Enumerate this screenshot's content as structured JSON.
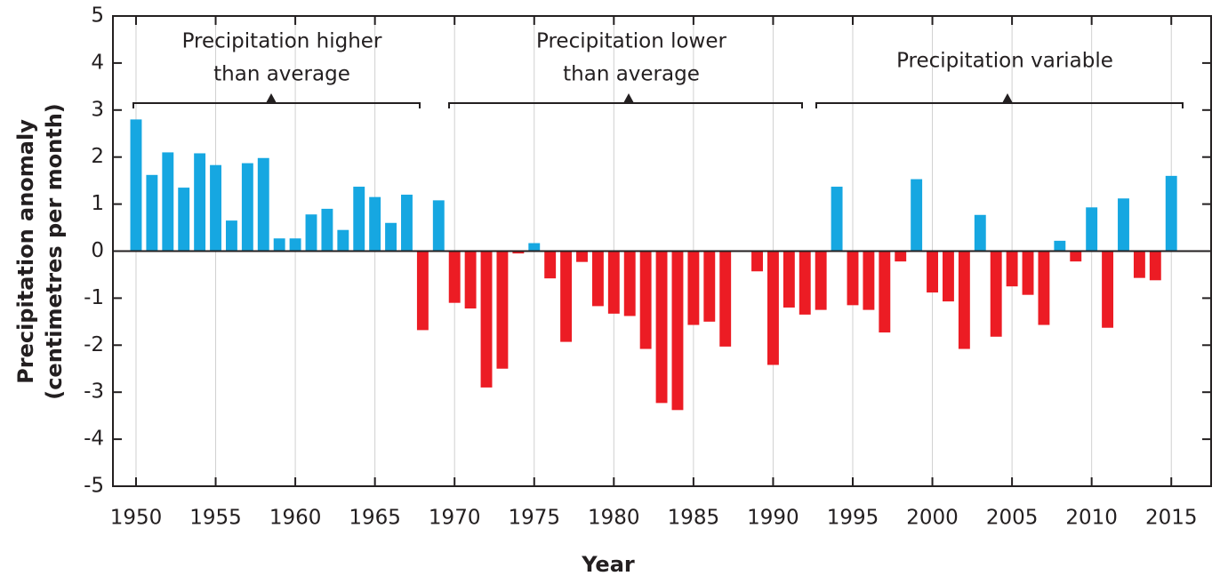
{
  "chart_data": {
    "type": "bar",
    "x": [
      1950,
      1951,
      1952,
      1953,
      1954,
      1955,
      1956,
      1957,
      1958,
      1959,
      1960,
      1961,
      1962,
      1963,
      1964,
      1965,
      1966,
      1967,
      1968,
      1969,
      1970,
      1971,
      1972,
      1973,
      1974,
      1975,
      1976,
      1977,
      1978,
      1979,
      1980,
      1981,
      1982,
      1983,
      1984,
      1985,
      1986,
      1987,
      1988,
      1989,
      1990,
      1991,
      1992,
      1993,
      1994,
      1995,
      1996,
      1997,
      1998,
      1999,
      2000,
      2001,
      2002,
      2003,
      2004,
      2005,
      2006,
      2007,
      2008,
      2009,
      2010,
      2011,
      2012,
      2013,
      2014,
      2015
    ],
    "values": [
      2.8,
      1.62,
      2.1,
      1.35,
      2.08,
      1.83,
      0.65,
      1.87,
      1.98,
      0.27,
      0.27,
      0.78,
      0.9,
      0.45,
      1.37,
      1.15,
      0.6,
      1.2,
      -1.68,
      1.08,
      -1.1,
      -1.22,
      -2.9,
      -2.5,
      -0.05,
      0.17,
      -0.58,
      -1.93,
      -0.23,
      -1.17,
      -1.33,
      -1.38,
      -2.08,
      -3.23,
      -3.38,
      -1.57,
      -1.5,
      -2.03,
      null,
      -0.43,
      -2.42,
      -1.2,
      -1.35,
      -1.25,
      1.37,
      -1.15,
      -1.25,
      -1.73,
      -0.22,
      1.53,
      -0.88,
      -1.07,
      -2.08,
      0.77,
      -1.82,
      -0.75,
      -0.93,
      -1.57,
      0.22,
      -0.22,
      0.93,
      -1.63,
      1.12,
      -0.57,
      -0.62,
      1.6
    ],
    "positive_color": "#16a7e1",
    "negative_color": "#ec1c24",
    "xlim": [
      1948.55,
      2017.5
    ],
    "xticks": [
      1950,
      1955,
      1960,
      1965,
      1970,
      1975,
      1980,
      1985,
      1990,
      1995,
      2000,
      2005,
      2010,
      2015
    ],
    "ylim": [
      -5,
      5
    ],
    "yticks": [
      -5,
      -4,
      -3,
      -2,
      -1,
      0,
      1,
      2,
      3,
      4,
      5
    ],
    "grid": true,
    "xlabel": "Year",
    "ylabel": [
      "Precipitation anomaly",
      "(centimetres per month)"
    ],
    "annotations": [
      [
        "Precipitation higher",
        "than average"
      ],
      [
        "Precipitation lower",
        "than average"
      ],
      [
        "Precipitation variable"
      ]
    ]
  }
}
